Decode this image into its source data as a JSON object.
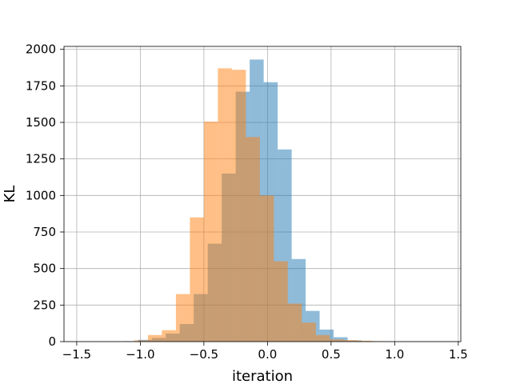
{
  "chart_data": {
    "type": "histogram",
    "title": "",
    "xlabel": "iteration",
    "ylabel": "KL",
    "xlim": [
      -1.6,
      1.52
    ],
    "ylim": [
      0,
      2020
    ],
    "grid": true,
    "x_ticks": [
      -1.5,
      -1.0,
      -0.5,
      0.0,
      0.5,
      1.0,
      1.5
    ],
    "x_tick_labels": [
      "−1.5",
      "−1.0",
      "−0.5",
      "0.0",
      "0.5",
      "1.0",
      "1.5"
    ],
    "y_ticks": [
      0,
      250,
      500,
      750,
      1000,
      1250,
      1500,
      1750,
      2000
    ],
    "y_tick_labels": [
      "0",
      "250",
      "500",
      "750",
      "1000",
      "1250",
      "1500",
      "1750",
      "2000"
    ],
    "series": [
      {
        "color": "#1f77b4",
        "alpha": 0.5,
        "bins": [
          {
            "x0": -1.13,
            "x1": -1.02,
            "count": 3
          },
          {
            "x0": -1.02,
            "x1": -0.91,
            "count": 12
          },
          {
            "x0": -0.91,
            "x1": -0.8,
            "count": 25
          },
          {
            "x0": -0.8,
            "x1": -0.69,
            "count": 55
          },
          {
            "x0": -0.69,
            "x1": -0.58,
            "count": 120
          },
          {
            "x0": -0.58,
            "x1": -0.47,
            "count": 325
          },
          {
            "x0": -0.47,
            "x1": -0.36,
            "count": 670
          },
          {
            "x0": -0.36,
            "x1": -0.25,
            "count": 1150
          },
          {
            "x0": -0.25,
            "x1": -0.14,
            "count": 1710
          },
          {
            "x0": -0.14,
            "x1": -0.03,
            "count": 1930
          },
          {
            "x0": -0.03,
            "x1": 0.08,
            "count": 1775
          },
          {
            "x0": 0.08,
            "x1": 0.19,
            "count": 1315
          },
          {
            "x0": 0.19,
            "x1": 0.3,
            "count": 565
          },
          {
            "x0": 0.3,
            "x1": 0.41,
            "count": 210
          },
          {
            "x0": 0.41,
            "x1": 0.52,
            "count": 82
          },
          {
            "x0": 0.52,
            "x1": 0.63,
            "count": 30
          },
          {
            "x0": 0.63,
            "x1": 0.74,
            "count": 8
          },
          {
            "x0": 0.74,
            "x1": 0.85,
            "count": 3
          }
        ]
      },
      {
        "color": "#ff7f0e",
        "alpha": 0.5,
        "bins": [
          {
            "x0": -1.05,
            "x1": -0.94,
            "count": 8
          },
          {
            "x0": -0.94,
            "x1": -0.83,
            "count": 45
          },
          {
            "x0": -0.83,
            "x1": -0.72,
            "count": 78
          },
          {
            "x0": -0.72,
            "x1": -0.61,
            "count": 325
          },
          {
            "x0": -0.61,
            "x1": -0.5,
            "count": 850
          },
          {
            "x0": -0.5,
            "x1": -0.39,
            "count": 1505
          },
          {
            "x0": -0.39,
            "x1": -0.28,
            "count": 1870
          },
          {
            "x0": -0.28,
            "x1": -0.17,
            "count": 1860
          },
          {
            "x0": -0.17,
            "x1": -0.06,
            "count": 1400
          },
          {
            "x0": -0.06,
            "x1": 0.05,
            "count": 1000
          },
          {
            "x0": 0.05,
            "x1": 0.16,
            "count": 550
          },
          {
            "x0": 0.16,
            "x1": 0.27,
            "count": 260
          },
          {
            "x0": 0.27,
            "x1": 0.38,
            "count": 130
          },
          {
            "x0": 0.38,
            "x1": 0.49,
            "count": 45
          },
          {
            "x0": 0.49,
            "x1": 0.6,
            "count": 15
          },
          {
            "x0": 0.6,
            "x1": 0.71,
            "count": 10
          },
          {
            "x0": 0.71,
            "x1": 0.82,
            "count": 6
          },
          {
            "x0": 0.82,
            "x1": 0.93,
            "count": 3
          }
        ]
      }
    ]
  }
}
